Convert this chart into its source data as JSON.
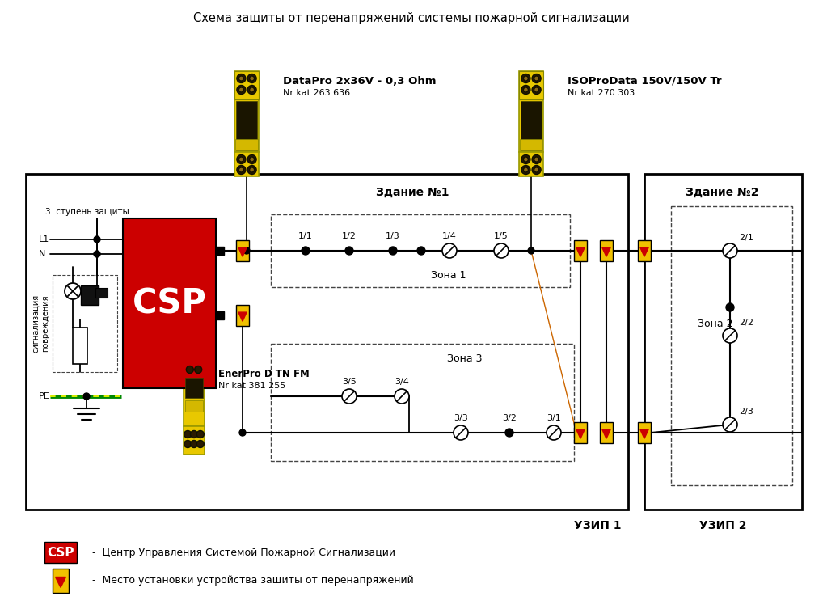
{
  "title": "Схема защиты от перенапряжений системы пожарной сигнализации",
  "bg_color": "#ffffff",
  "device1_name": "DataPro 2x36V - 0,3 Ohm",
  "device1_cat": "Nr kat 263 636",
  "device2_name": "ISOProData 150V/150V Tr",
  "device2_cat": "Nr kat 270 303",
  "device3_name": "EnerPro D TN FM",
  "device3_cat": "Nr kat 381 255",
  "csp_label": "CSP",
  "building1_label": "Здание №1",
  "building2_label": "Здание №2",
  "zone1_label": "Зона 1",
  "zone2_label": "Зона 2",
  "zone3_label": "Зона 3",
  "uzip1_label": "УЗИП 1",
  "uzip2_label": "УЗИП 2",
  "legend_csp": "CSP",
  "legend_csp_text": " -  Центр Управления Системой Пожарной Сигнализации",
  "legend_uzip_text": " -  Место установки устройства защиты от перенапряжений",
  "step3_label": "3. ступень защиты",
  "l1_label": "L1",
  "n_label": "N",
  "pe_label": "PE",
  "sig_label": "сигнализация\nповреждения",
  "yellow_color": "#F0C000",
  "yellow_body": "#E8C800",
  "red_color": "#CC0000",
  "csp_red": "#CC0000",
  "line_color": "#000000"
}
